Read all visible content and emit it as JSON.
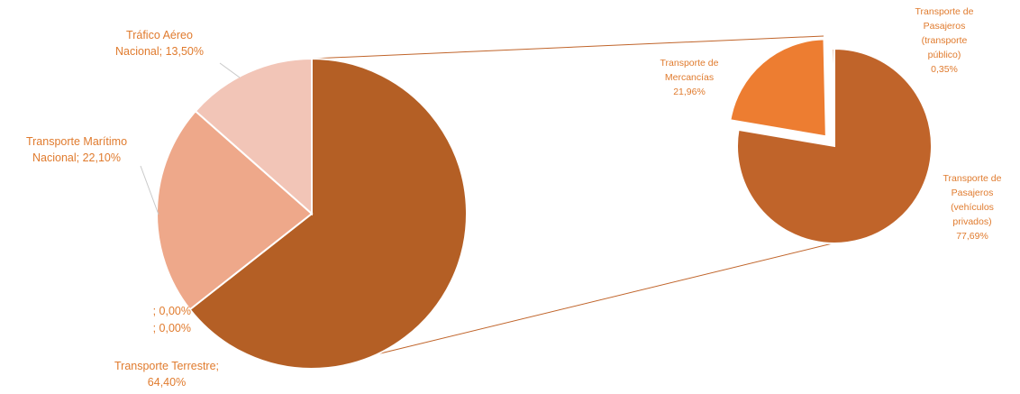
{
  "colors": {
    "label_text": "#e07b2e",
    "leader_line": "#c9c9c9",
    "connector": "#c0642a",
    "slice_border": "#ffffff"
  },
  "chart_data": {
    "type": "pie",
    "subtype": "pie-of-pie",
    "main_pie": {
      "slices": [
        {
          "label": "Transporte Terrestre",
          "value": 64.4,
          "value_text": "64,40%",
          "color": "#b45f25"
        },
        {
          "label": "",
          "value": 0.0,
          "value_text": "0,00%",
          "color": "#b45f25"
        },
        {
          "label": "",
          "value": 0.0,
          "value_text": "0,00%",
          "color": "#b45f25"
        },
        {
          "label": "Transporte Marítimo Nacional",
          "value": 22.1,
          "value_text": "22,10%",
          "color": "#eea88a"
        },
        {
          "label": "Tráfico Aéreo Nacional",
          "value": 13.5,
          "value_text": "13,50%",
          "color": "#f2c5b7"
        }
      ]
    },
    "secondary_pie": {
      "parent": "Transporte Terrestre",
      "slices": [
        {
          "label": "Transporte de Pasajeros (vehículos privados)",
          "value": 77.69,
          "value_text": "77,69%",
          "color": "#c0642a"
        },
        {
          "label": "Transporte de Mercancías",
          "value": 21.96,
          "value_text": "21,96%",
          "color": "#ed7d31",
          "exploded": true
        },
        {
          "label": "Transporte de Pasajeros (transporte público)",
          "value": 0.35,
          "value_text": "0,35%",
          "color": "#c0642a"
        }
      ]
    }
  },
  "labels": {
    "aereo": {
      "line1": "Tráfico Aéreo",
      "line2": "Nacional; 13,50%"
    },
    "maritimo": {
      "line1": "Transporte Marítimo",
      "line2": "Nacional; 22,10%"
    },
    "zero_a": "; 0,00%",
    "zero_b": "; 0,00%",
    "terrestre": {
      "line1": "Transporte Terrestre;",
      "line2": "64,40%"
    },
    "mercancias": {
      "line1": "Transporte de",
      "line2": "Mercancías",
      "line3": "21,96%"
    },
    "publico": {
      "line1": "Transporte de",
      "line2": "Pasajeros",
      "line3": "(transporte",
      "line4": "público)",
      "line5": "0,35%"
    },
    "privados": {
      "line1": "Transporte de",
      "line2": "Pasajeros",
      "line3": "(vehículos",
      "line4": "privados)",
      "line5": "77,69%"
    }
  }
}
